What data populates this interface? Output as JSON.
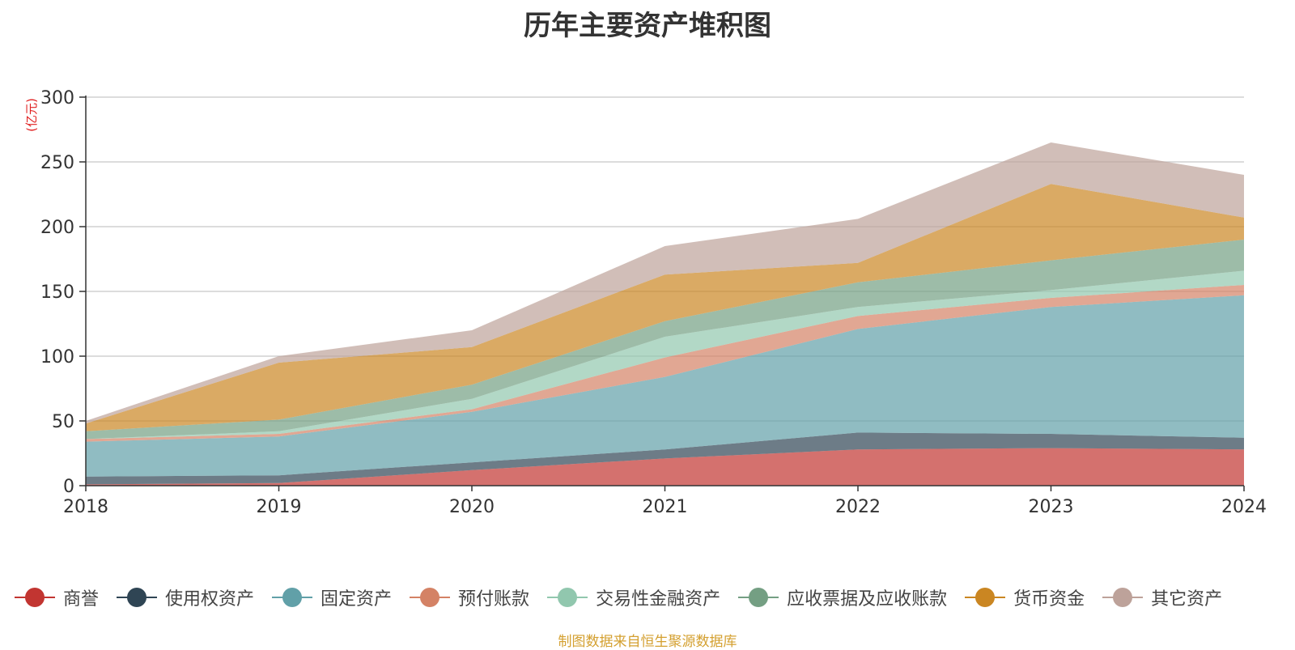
{
  "chart_data": {
    "type": "area",
    "title": "历年主要资产堆积图",
    "unit_label": "(亿元)",
    "x": [
      "2018",
      "2019",
      "2020",
      "2021",
      "2022",
      "2023",
      "2024"
    ],
    "ylim": [
      0,
      300
    ],
    "yticks": [
      0,
      50,
      100,
      150,
      200,
      250,
      300
    ],
    "grid": true,
    "legend_position": "bottom",
    "stacked": true,
    "series": [
      {
        "name": "商誉",
        "color": "#c23531",
        "values": [
          1,
          2,
          12,
          21,
          28,
          29,
          28
        ]
      },
      {
        "name": "使用权资产",
        "color": "#2f4554",
        "values": [
          6,
          6,
          6,
          7,
          13,
          11,
          9
        ]
      },
      {
        "name": "固定资产",
        "color": "#61a0a8",
        "values": [
          27,
          30,
          39,
          56,
          80,
          98,
          110
        ]
      },
      {
        "name": "预付账款",
        "color": "#d48265",
        "values": [
          2,
          2,
          2,
          15,
          10,
          7,
          8
        ]
      },
      {
        "name": "交易性金融资产",
        "color": "#91c7ae",
        "values": [
          0,
          2,
          8,
          16,
          7,
          6,
          11
        ]
      },
      {
        "name": "应收票据及应收账款",
        "color": "#749f83",
        "values": [
          6,
          9,
          11,
          12,
          19,
          23,
          24
        ]
      },
      {
        "name": "货币资金",
        "color": "#ca8622",
        "values": [
          6,
          44,
          29,
          36,
          15,
          59,
          17
        ]
      },
      {
        "name": "其它资产",
        "color": "#bda29a",
        "values": [
          2,
          5,
          13,
          22,
          34,
          32,
          33
        ]
      }
    ]
  },
  "source_text": "制图数据来自恒生聚源数据库"
}
